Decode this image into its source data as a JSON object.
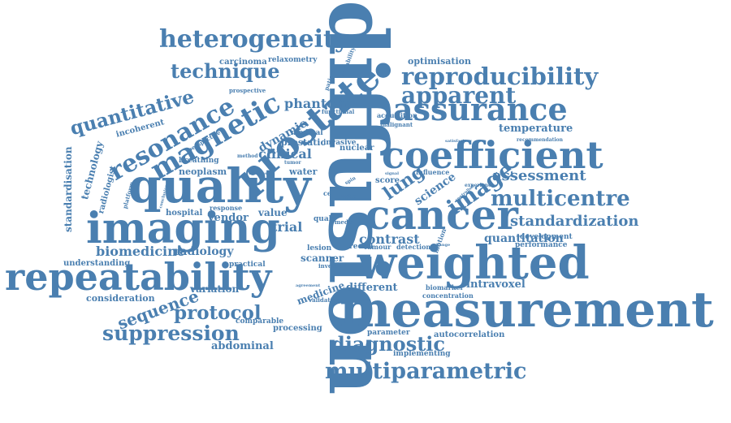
{
  "colors": {
    "word": "#4a7fb0",
    "background": "#ffffff"
  },
  "words": [
    "diffusion",
    "measurement",
    "weighted",
    "imaging",
    "repeatability",
    "quality",
    "cancer",
    "coefficient",
    "prostate",
    "heterogeneity",
    "reproducibility",
    "assurance",
    "apparent",
    "magnetic",
    "resonance",
    "quantitative",
    "technique",
    "multiparametric",
    "suppression",
    "diagnostic",
    "protocol",
    "multicentre",
    "image",
    "standardization",
    "sequence",
    "assessment",
    "lung",
    "contrast",
    "biomedicine",
    "radiology",
    "phantom",
    "clinical",
    "dynamic",
    "intravoxel",
    "standardisation",
    "technology",
    "abdominal",
    "temperature",
    "quantitation",
    "different",
    "science",
    "scanner",
    "medicine",
    "vendor",
    "value",
    "trial",
    "variation",
    "consideration",
    "optimisation",
    "understanding",
    "processing",
    "parameter",
    "autocorrelation",
    "implementing",
    "development",
    "performance",
    "carcinoma",
    "prostatic",
    "neoplasm",
    "breathing",
    "hospital",
    "relaxometry",
    "incoherent",
    "radiologist",
    "nuclear",
    "invasive",
    "medical",
    "tumour",
    "detection",
    "rectal",
    "comparable",
    "practical",
    "lesion",
    "score",
    "water",
    "response",
    "influence",
    "biomarker",
    "concentration",
    "validation",
    "inversion",
    "acquisition",
    "malignant",
    "functional",
    "variability",
    "patient",
    "echo",
    "qual",
    "prospective",
    "perspective",
    "recommendation",
    "satisfactory",
    "experience",
    "conclusion",
    "platform",
    "method",
    "whereas",
    "tumor",
    "agreement",
    "signal",
    "media",
    "motion",
    "change",
    "controlled",
    "cell",
    "spin"
  ]
}
